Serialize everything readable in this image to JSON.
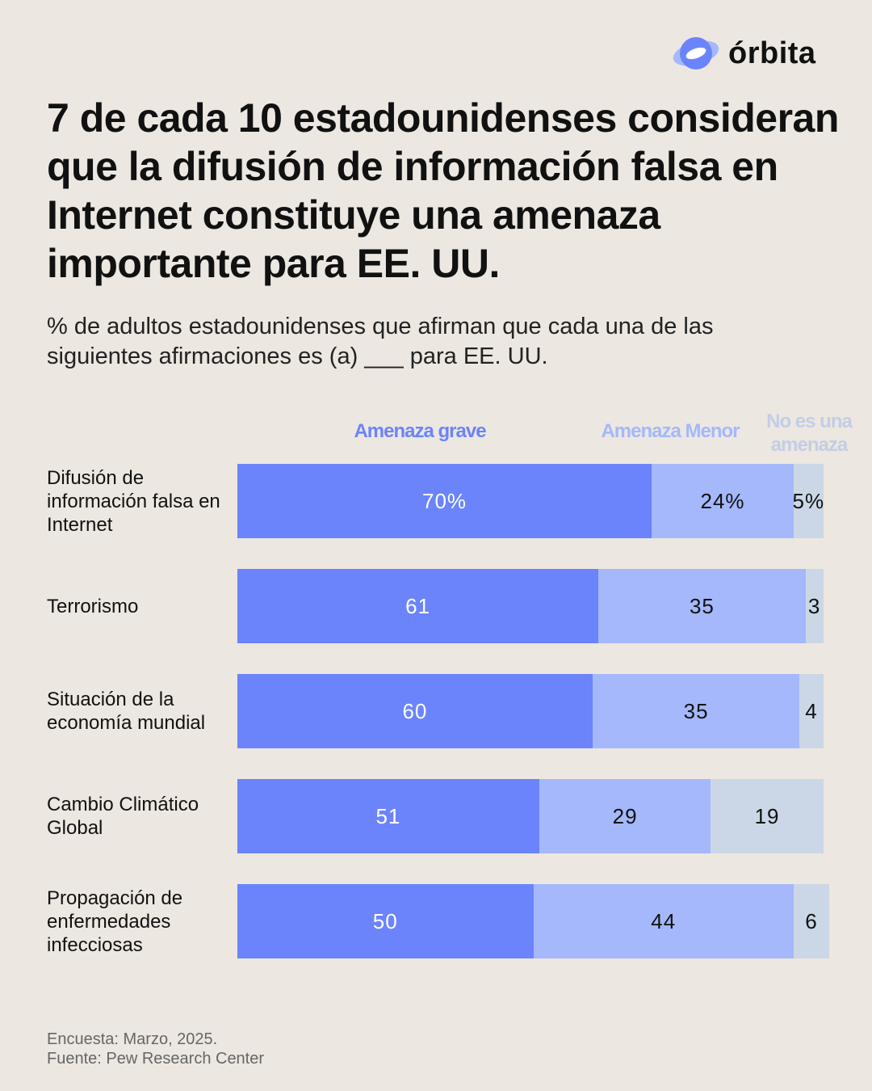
{
  "brand": {
    "name": "órbita",
    "logo_colors": [
      "#6b84fb",
      "#a4b8fb"
    ]
  },
  "title": "7 de cada 10 estadounidenses consideran que la difusión de información falsa en Internet constituye una amenaza importante para EE. UU.",
  "subtitle": "% de adultos estadounidenses que afirman que cada una de las siguientes afirmaciones es (a) ___ para EE. UU.",
  "chart_data": {
    "type": "bar",
    "orientation": "horizontal",
    "stacked": true,
    "categories": [
      "Difusión de información falsa en Internet",
      "Terrorismo",
      "Situación de la economía mundial",
      "Cambio Climático Global",
      "Propagación de enfermedades infecciosas"
    ],
    "series": [
      {
        "name": "Amenaza grave",
        "color": "#6b84fb",
        "values": [
          70,
          61,
          60,
          51,
          50
        ],
        "labels": [
          "70%",
          "61",
          "60",
          "51",
          "50"
        ]
      },
      {
        "name": "Amenaza Menor",
        "color": "#a4b8fb",
        "values": [
          24,
          35,
          35,
          29,
          44
        ],
        "labels": [
          "24%",
          "35",
          "35",
          "29",
          "44"
        ]
      },
      {
        "name": "No es una amenaza",
        "color": "#cbd7e6",
        "values": [
          5,
          3,
          4,
          19,
          6
        ],
        "labels": [
          "5%",
          "3",
          "4",
          "19",
          "6"
        ]
      }
    ],
    "legend": "top",
    "grid": false
  },
  "footer": {
    "survey": "Encuesta: Marzo, 2025.",
    "source": "Fuente: Pew Research Center"
  }
}
